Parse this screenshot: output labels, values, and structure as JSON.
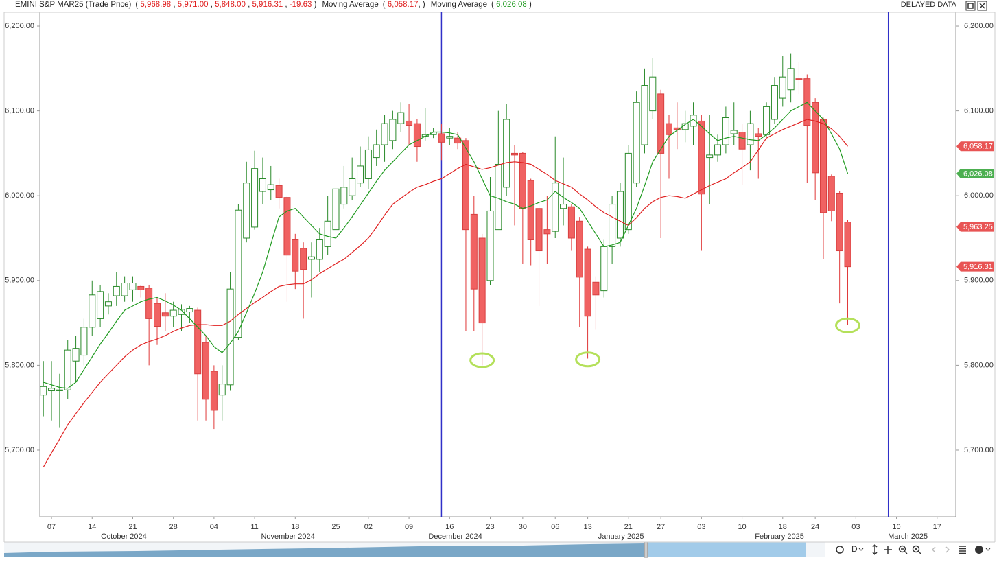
{
  "chart_data": {
    "type": "candlestick",
    "header": {
      "instrument": "EMINI S&P MAR25 (Trade Price)",
      "ohlc": [
        "5,968.98",
        "5,971.00",
        "5,848.00",
        "5,916.31",
        "-19.63"
      ]
    },
    "status": "DELAYED DATA",
    "interval": "D",
    "open": [
      5765,
      5770,
      5770,
      5771,
      5805,
      5812,
      5845,
      5855,
      5870,
      5882,
      5882,
      5889,
      5893,
      5891,
      5873,
      5862,
      5858,
      5860,
      5863,
      5865,
      5827,
      5793,
      5765,
      5777,
      5833,
      5950,
      5963,
      6005,
      6007,
      6012,
      5998,
      5948,
      5938,
      5925,
      5925,
      5940,
      5960,
      5990,
      6000,
      6015,
      6020,
      6045,
      6060,
      6065,
      6085,
      6088,
      6085,
      6070,
      6072,
      6073,
      6068,
      6068,
      6065,
      5978,
      5950,
      5900,
      5960,
      6010,
      6050,
      6050,
      6018,
      5985,
      5960,
      5958,
      5985,
      5987,
      5970,
      5937,
      5898,
      5888,
      5940,
      5950,
      5960,
      6015,
      6060,
      6100,
      6120,
      6085,
      6080,
      6078,
      6082,
      6088,
      6045,
      6048,
      6060,
      6073,
      6075,
      6060,
      6073,
      6072,
      6090,
      6115,
      6125,
      6138,
      6138,
      6110,
      6090,
      6023,
      6003,
      5968.98
    ],
    "high": [
      5805,
      5805,
      5790,
      5830,
      5835,
      5855,
      5900,
      5895,
      5885,
      5910,
      5905,
      5905,
      5895,
      5895,
      5880,
      5885,
      5875,
      5872,
      5870,
      5868,
      5835,
      5800,
      5800,
      5910,
      5990,
      6040,
      6053,
      6045,
      6035,
      6020,
      6000,
      5955,
      5945,
      5945,
      5962,
      6000,
      6027,
      6035,
      6045,
      6058,
      6070,
      6078,
      6095,
      6100,
      6110,
      6108,
      6090,
      6103,
      6080,
      6085,
      6080,
      6075,
      6068,
      6000,
      5955,
      6022,
      6100,
      6108,
      6060,
      6052,
      6020,
      5995,
      6000,
      6070,
      6045,
      5990,
      5975,
      5940,
      5905,
      5948,
      6000,
      6015,
      6060,
      6123,
      6150,
      6162,
      6125,
      6095,
      6110,
      6100,
      6110,
      6095,
      6095,
      6072,
      6105,
      6110,
      6085,
      6100,
      6080,
      6110,
      6140,
      6165,
      6168,
      6158,
      6143,
      6115,
      6092,
      6025,
      6005,
      5971
    ],
    "low": [
      5740,
      5735,
      5727,
      5760,
      5780,
      5800,
      5835,
      5845,
      5860,
      5870,
      5875,
      5875,
      5880,
      5800,
      5824,
      5840,
      5845,
      5840,
      5850,
      5735,
      5735,
      5725,
      5735,
      5770,
      5830,
      5945,
      5960,
      5990,
      5995,
      5985,
      5875,
      5890,
      5855,
      5880,
      5910,
      5930,
      5955,
      5985,
      5995,
      6010,
      6008,
      6035,
      6040,
      6055,
      6075,
      6060,
      6040,
      6065,
      6068,
      6042,
      6060,
      6055,
      5840,
      5840,
      5800,
      5895,
      5960,
      6000,
      5965,
      5920,
      5918,
      5870,
      5920,
      5950,
      5965,
      5935,
      5845,
      5808,
      5842,
      5880,
      5920,
      5940,
      5955,
      6010,
      6050,
      6090,
      5950,
      6020,
      6055,
      6063,
      6060,
      5935,
      5990,
      6040,
      6050,
      6060,
      6013,
      6030,
      6020,
      6070,
      6085,
      6105,
      6110,
      6120,
      6015,
      5995,
      5925,
      5970,
      5873,
      5848
    ],
    "close": [
      5775,
      5773,
      5771,
      5818,
      5820,
      5845,
      5883,
      5887,
      5875,
      5893,
      5897,
      5897,
      5889,
      5855,
      5846,
      5858,
      5865,
      5866,
      5867,
      5790,
      5760,
      5747,
      5778,
      5890,
      5983,
      6015,
      6032,
      6020,
      6013,
      5998,
      5930,
      5911,
      5913,
      5928,
      5948,
      5970,
      6008,
      6010,
      6020,
      6035,
      6054,
      6060,
      6085,
      6090,
      6098,
      6083,
      6058,
      6072,
      6075,
      6063,
      6070,
      6062,
      5960,
      5890,
      5850,
      5982,
      6037,
      6090,
      6048,
      5985,
      5948,
      5935,
      5955,
      6015,
      5990,
      5950,
      5904,
      5858,
      5883,
      5940,
      5990,
      6005,
      6050,
      6110,
      6130,
      6140,
      6050,
      6072,
      6078,
      6085,
      6095,
      6002,
      6048,
      6060,
      6092,
      6077,
      6055,
      6085,
      6070,
      6105,
      6130,
      6140,
      6150,
      6137,
      6083,
      6027,
      5980,
      5982,
      5935,
      5916.31
    ],
    "up_color": "#2a8a2a",
    "down_color": "#f06262",
    "series": [
      {
        "name": "Moving Average",
        "color": "#e02020",
        "value_label": "6,058.17",
        "values": [
          5680,
          5697,
          5713,
          5730,
          5743,
          5756,
          5768,
          5780,
          5790,
          5800,
          5810,
          5818,
          5824,
          5828,
          5831,
          5835,
          5840,
          5844,
          5847,
          5848,
          5848,
          5847,
          5847,
          5852,
          5860,
          5867,
          5874,
          5880,
          5887,
          5893,
          5895,
          5896,
          5896,
          5901,
          5908,
          5914,
          5920,
          5925,
          5933,
          5941,
          5950,
          5963,
          5977,
          5990,
          5997,
          6004,
          6010,
          6013,
          6017,
          6020,
          6026,
          6032,
          6037,
          6034,
          6031,
          6033,
          6036,
          6039,
          6040,
          6039,
          6037,
          6031,
          6025,
          6018,
          6014,
          6010,
          6002,
          5995,
          5987,
          5980,
          5975,
          5970,
          5965,
          5974,
          5985,
          5993,
          5998,
          6000,
          5999,
          5997,
          6002,
          6007,
          6012,
          6016,
          6020,
          6027,
          6033,
          6040,
          6054,
          6068,
          6073,
          6078,
          6082,
          6086,
          6090,
          6088,
          6085,
          6079,
          6070,
          6058.17
        ]
      },
      {
        "name": "Moving Average",
        "color": "#1f9a1f",
        "value_label": "6,026.08",
        "values": [
          5780,
          5777,
          5774,
          5773,
          5780,
          5795,
          5810,
          5825,
          5838,
          5852,
          5865,
          5870,
          5875,
          5878,
          5880,
          5876,
          5871,
          5865,
          5855,
          5845,
          5835,
          5822,
          5815,
          5826,
          5840,
          5862,
          5885,
          5910,
          5943,
          5975,
          5982,
          5985,
          5975,
          5965,
          5955,
          5952,
          5950,
          5962,
          5975,
          5989,
          6003,
          6017,
          6030,
          6040,
          6050,
          6060,
          6065,
          6070,
          6075,
          6075,
          6074,
          6072,
          6056,
          6040,
          6020,
          6000,
          5997,
          5993,
          5990,
          5985,
          5988,
          5992,
          5995,
          6005,
          5998,
          5992,
          5985,
          5970,
          5955,
          5940,
          5942,
          5945,
          5965,
          5985,
          6012,
          6040,
          6055,
          6070,
          6077,
          6084,
          6090,
          6082,
          6073,
          6065,
          6068,
          6070,
          6068,
          6066,
          6065,
          6072,
          6080,
          6090,
          6100,
          6105,
          6110,
          6100,
          6090,
          6073,
          6055,
          6026.08
        ]
      }
    ],
    "xlim": [
      -0.44,
      112.3
    ],
    "xticks": [
      {
        "value": 1,
        "label": "07"
      },
      {
        "value": 6,
        "label": "14"
      },
      {
        "value": 11,
        "label": "21"
      },
      {
        "value": 16,
        "label": "28"
      },
      {
        "value": 21,
        "label": "04"
      },
      {
        "value": 26,
        "label": "11"
      },
      {
        "value": 31,
        "label": "18"
      },
      {
        "value": 36,
        "label": "25"
      },
      {
        "value": 40,
        "label": "02"
      },
      {
        "value": 45,
        "label": "09"
      },
      {
        "value": 50,
        "label": "16"
      },
      {
        "value": 55,
        "label": "23"
      },
      {
        "value": 59,
        "label": "30"
      },
      {
        "value": 63,
        "label": "06"
      },
      {
        "value": 67,
        "label": "13"
      },
      {
        "value": 72,
        "label": "21"
      },
      {
        "value": 76,
        "label": "27"
      },
      {
        "value": 81,
        "label": "03"
      },
      {
        "value": 86,
        "label": "10"
      },
      {
        "value": 91,
        "label": "18"
      },
      {
        "value": 95,
        "label": "24"
      },
      {
        "value": 100,
        "label": "03"
      },
      {
        "value": 105,
        "label": "10"
      },
      {
        "value": 110,
        "label": "17"
      }
    ],
    "month_labels": [
      {
        "value": 9.9,
        "label": "October 2024"
      },
      {
        "value": 30.1,
        "label": "November 2024"
      },
      {
        "value": 50.7,
        "label": "December 2024"
      },
      {
        "value": 71.1,
        "label": "January 2025"
      },
      {
        "value": 90.6,
        "label": "February 2025"
      },
      {
        "value": 106.4,
        "label": "March 2025"
      }
    ],
    "ylim": [
      5621.5,
      6216.2
    ],
    "yticks": [
      {
        "value": 5700,
        "label": "5,700.00"
      },
      {
        "value": 5800,
        "label": "5,800.00"
      },
      {
        "value": 5900,
        "label": "5,900.00"
      },
      {
        "value": 6000,
        "label": "6,000.00"
      },
      {
        "value": 6100,
        "label": "6,100.00"
      },
      {
        "value": 6200,
        "label": "6,200.00"
      }
    ],
    "price_markers": [
      {
        "value": 6058.17,
        "label": "6,058.17",
        "color": "#e85454"
      },
      {
        "value": 6026.08,
        "label": "6,026.08",
        "color": "#4caf50"
      },
      {
        "value": 5963.25,
        "label": "5,963.25",
        "color": "#e85454"
      },
      {
        "value": 5916.31,
        "label": "5,916.31",
        "color": "#e85454"
      }
    ],
    "vlines": [
      {
        "value": 49,
        "color": "#3030c8"
      },
      {
        "value": 104,
        "color": "#3030c8"
      }
    ],
    "highlights": [
      {
        "index": 54,
        "value": 5806,
        "color": "#b4e05a"
      },
      {
        "index": 67,
        "value": 5807,
        "color": "#b4e05a"
      },
      {
        "index": 99,
        "value": 5847,
        "color": "#b4e05a"
      }
    ]
  }
}
